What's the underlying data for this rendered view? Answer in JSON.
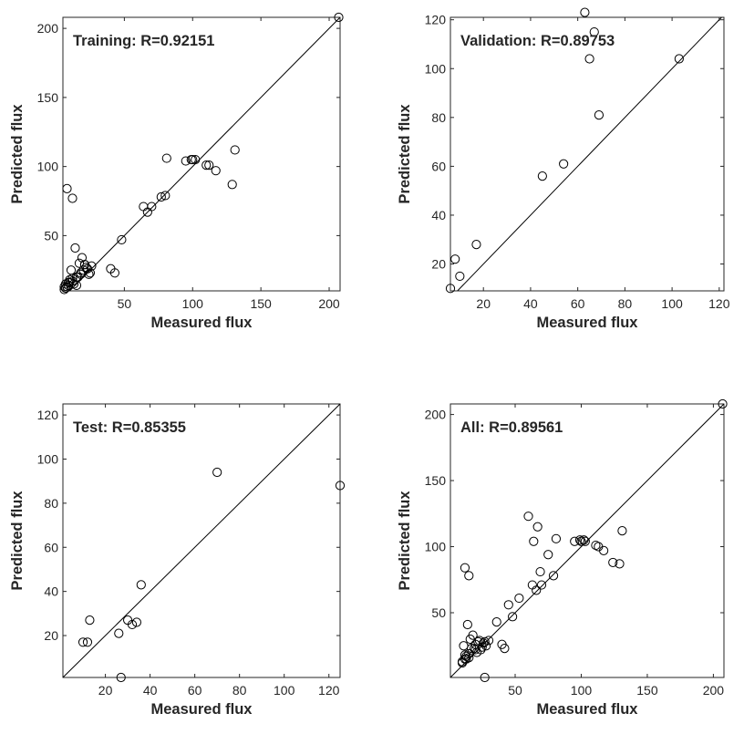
{
  "chart_data": [
    {
      "type": "scatter",
      "title": "Training: R=0.92151",
      "xlabel": "Measured flux",
      "ylabel": "Predicted flux",
      "xlim": [
        5,
        208
      ],
      "ylim": [
        10,
        208
      ],
      "xticks": [
        50,
        100,
        150,
        200
      ],
      "yticks": [
        50,
        100,
        150,
        200
      ],
      "identity_line": true,
      "series": [
        {
          "name": "Training",
          "x": [
            207,
            6,
            8,
            7,
            9,
            10,
            12,
            13,
            15,
            16,
            18,
            20,
            22,
            24,
            26,
            21,
            19,
            17,
            14,
            11,
            7,
            9,
            12,
            25,
            18,
            23,
            21,
            6,
            15,
            10,
            40,
            43,
            48,
            64,
            67,
            70,
            77,
            81,
            80,
            95,
            99,
            102,
            100,
            110,
            112,
            117,
            129,
            131,
            8,
            12
          ],
          "y": [
            208,
            11,
            13,
            15,
            16,
            18,
            17,
            15,
            14,
            20,
            23,
            25,
            27,
            22,
            28,
            29,
            34,
            30,
            41,
            25,
            12,
            14,
            19,
            23,
            22,
            26,
            29,
            13,
            20,
            16,
            26,
            23,
            47,
            71,
            67,
            71,
            78,
            106,
            79,
            104,
            105,
            105,
            105,
            101,
            101,
            97,
            87,
            112,
            84,
            77
          ]
        }
      ]
    },
    {
      "type": "scatter",
      "title": "Validation: R=0.89753",
      "xlabel": "Measured flux",
      "ylabel": "Predicted flux",
      "xlim": [
        6,
        122
      ],
      "ylim": [
        9,
        121
      ],
      "xticks": [
        20,
        40,
        60,
        80,
        100,
        120
      ],
      "yticks": [
        20,
        40,
        60,
        80,
        100,
        120
      ],
      "identity_line": true,
      "series": [
        {
          "name": "Validation",
          "x": [
            6,
            8,
            10,
            17,
            45,
            54,
            63,
            65,
            67,
            69,
            103
          ],
          "y": [
            10,
            22,
            15,
            28,
            56,
            61,
            123,
            104,
            115,
            81,
            104
          ]
        }
      ]
    },
    {
      "type": "scatter",
      "title": "Test: R=0.85355",
      "xlabel": "Measured flux",
      "ylabel": "Predicted flux",
      "xlim": [
        1,
        125
      ],
      "ylim": [
        1,
        125
      ],
      "xticks": [
        20,
        40,
        60,
        80,
        100,
        120
      ],
      "yticks": [
        20,
        40,
        60,
        80,
        100,
        120
      ],
      "identity_line": true,
      "series": [
        {
          "name": "Test",
          "x": [
            10,
            12,
            13,
            26,
            27,
            30,
            32,
            34,
            36,
            70,
            125
          ],
          "y": [
            17,
            17,
            27,
            21,
            1,
            27,
            25,
            26,
            43,
            94,
            88
          ]
        }
      ]
    },
    {
      "type": "scatter",
      "title": "All: R=0.89561",
      "xlabel": "Measured flux",
      "ylabel": "Predicted flux",
      "xlim": [
        1,
        208
      ],
      "ylim": [
        1,
        208
      ],
      "xticks": [
        50,
        100,
        150,
        200
      ],
      "yticks": [
        50,
        100,
        150,
        200
      ],
      "identity_line": true,
      "series": [
        {
          "name": "All",
          "x": [
            207,
            10,
            12,
            13,
            15,
            17,
            20,
            22,
            24,
            26,
            28,
            30,
            18,
            14,
            11,
            16,
            23,
            19,
            25,
            21,
            27,
            13,
            10,
            12,
            15,
            20,
            36,
            40,
            42,
            45,
            48,
            53,
            60,
            63,
            64,
            66,
            67,
            69,
            70,
            75,
            79,
            81,
            95,
            99,
            102,
            100,
            103,
            111,
            113,
            117,
            124,
            129,
            131,
            12,
            15,
            27
          ],
          "y": [
            208,
            13,
            15,
            17,
            19,
            23,
            26,
            28,
            22,
            27,
            25,
            29,
            33,
            41,
            25,
            30,
            29,
            23,
            24,
            20,
            28,
            15,
            12,
            18,
            16,
            22,
            43,
            26,
            23,
            56,
            47,
            61,
            123,
            71,
            104,
            67,
            115,
            81,
            71,
            94,
            78,
            106,
            104,
            105,
            105,
            104,
            104,
            101,
            100,
            97,
            88,
            87,
            112,
            84,
            78,
            1
          ]
        }
      ]
    }
  ]
}
